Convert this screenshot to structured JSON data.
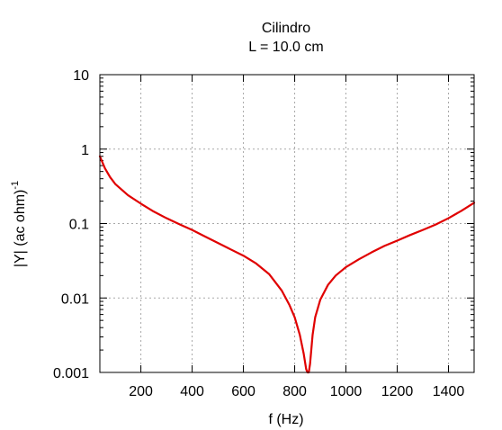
{
  "chart_data": {
    "type": "line",
    "title": "Cilindro",
    "subtitle": "L = 10.0 cm",
    "xlabel": "f (Hz)",
    "ylabel": {
      "base": "|Y| (ac ohm)",
      "superscript": "-1"
    },
    "xlim": [
      40,
      1500
    ],
    "ylim": [
      0.001,
      10
    ],
    "yscale": "log",
    "grid": true,
    "x_ticks": [
      {
        "value": 200,
        "label": "200"
      },
      {
        "value": 400,
        "label": "400"
      },
      {
        "value": 600,
        "label": "600"
      },
      {
        "value": 800,
        "label": "800"
      },
      {
        "value": 1000,
        "label": "1000"
      },
      {
        "value": 1200,
        "label": "1200"
      },
      {
        "value": 1400,
        "label": "1400"
      }
    ],
    "y_ticks": [
      {
        "value": 0.001,
        "label": "0.001"
      },
      {
        "value": 0.01,
        "label": "0.01"
      },
      {
        "value": 0.1,
        "label": "0.1"
      },
      {
        "value": 1,
        "label": "1"
      },
      {
        "value": 10,
        "label": "10"
      }
    ],
    "series": [
      {
        "color": "#e00000",
        "x": [
          40,
          60,
          80,
          100,
          150,
          200,
          250,
          300,
          350,
          400,
          450,
          500,
          550,
          600,
          650,
          700,
          750,
          780,
          800,
          820,
          835,
          845,
          850,
          855,
          860,
          870,
          880,
          900,
          930,
          960,
          1000,
          1050,
          1100,
          1150,
          1200,
          1250,
          1300,
          1350,
          1400,
          1450,
          1500
        ],
        "y": [
          0.8,
          0.55,
          0.42,
          0.34,
          0.24,
          0.185,
          0.145,
          0.118,
          0.098,
          0.082,
          0.067,
          0.055,
          0.045,
          0.037,
          0.029,
          0.021,
          0.0125,
          0.008,
          0.0055,
          0.0032,
          0.0018,
          0.0011,
          0.001,
          0.001,
          0.0013,
          0.0032,
          0.0055,
          0.0095,
          0.015,
          0.02,
          0.026,
          0.033,
          0.041,
          0.05,
          0.059,
          0.07,
          0.082,
          0.097,
          0.118,
          0.148,
          0.19
        ]
      }
    ]
  }
}
